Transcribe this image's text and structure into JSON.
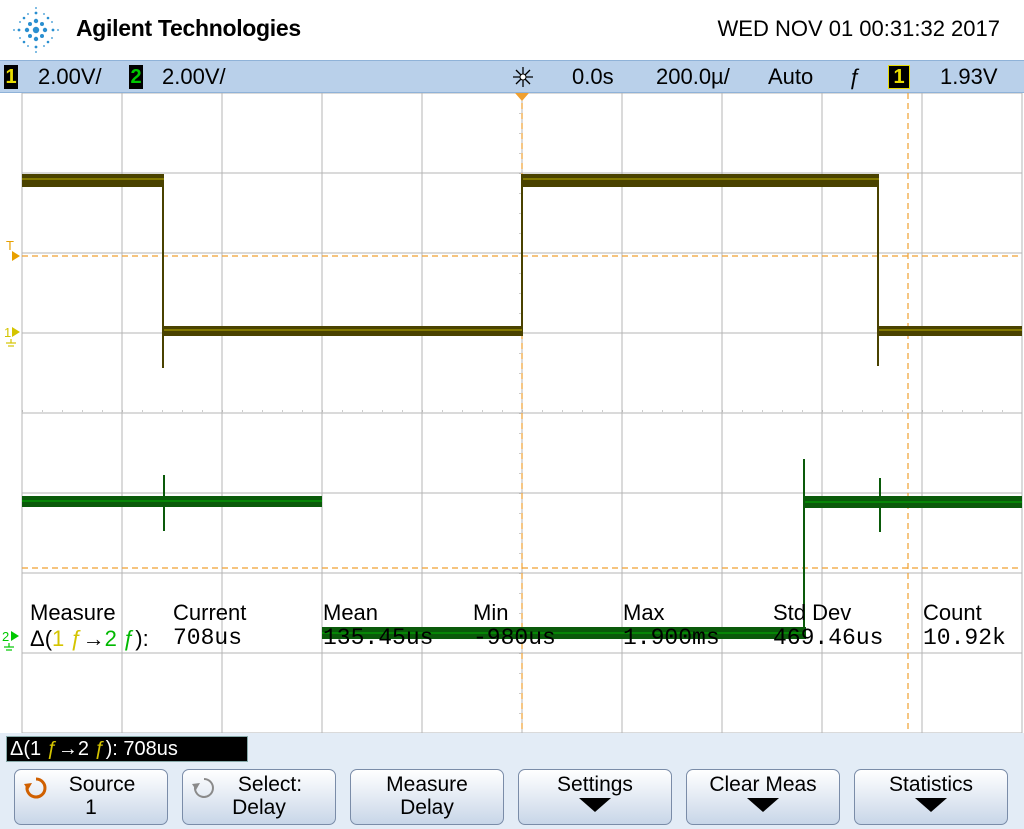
{
  "header": {
    "brand": "Agilent Technologies",
    "datetime": "WED NOV 01 00:31:32 2017"
  },
  "status": {
    "ch1_num": "1",
    "ch1_scale": "2.00V/",
    "ch2_num": "2",
    "ch2_scale": "2.00V/",
    "time_offset": "0.0s",
    "timebase": "200.0µ/",
    "trigger_mode": "Auto",
    "trigger_slope_symbol": "ƒ",
    "trigger_source": "1",
    "trigger_level": "1.93V"
  },
  "markers": {
    "trigger_label": "T",
    "ch1_label": "1",
    "ch2_label": "2"
  },
  "measure": {
    "title": "Measure",
    "delta_prefix": "Δ(",
    "delta_ch1": "1",
    "delta_edge1": "ƒ",
    "delta_arrow": "→",
    "delta_ch2": "2",
    "delta_edge2": "ƒ",
    "delta_suffix": "):",
    "columns": [
      "Current",
      "Mean",
      "Min",
      "Max",
      "Std Dev",
      "Count"
    ],
    "values": [
      "708us",
      "135.45us",
      "-980us",
      "1.900ms",
      "469.46us",
      "10.92k"
    ]
  },
  "delta_readout": {
    "prefix": "Δ(1 ",
    "edge1": "ƒ",
    "arrow": "→",
    "ch2": "2 ",
    "edge2": "ƒ",
    "value": "): 708us"
  },
  "softkeys": {
    "source": {
      "l1": "Source",
      "l2": "1"
    },
    "select": {
      "l1": "Select:",
      "l2": "Delay"
    },
    "measure_delay": {
      "l1": "Measure",
      "l2": "Delay"
    },
    "settings": {
      "l1": "Settings"
    },
    "clear_meas": {
      "l1": "Clear Meas"
    },
    "statistics": {
      "l1": "Statistics"
    }
  },
  "colors": {
    "ch1": "#e8dc00",
    "ch1_trace": "#4a4200",
    "ch2": "#00c800",
    "ch2_trace": "#0a5a0a",
    "grid": "#b4b4b4",
    "cursor": "#f0a030",
    "statusbar": "#b9d0ea"
  },
  "icons": {
    "logo": "agilent-spark-logo",
    "trigger": "trigger-position-icon",
    "source_softkey": "rotary-knob-icon",
    "select_softkey": "rotary-knob-icon",
    "submenu": "down-arrow-icon"
  }
}
